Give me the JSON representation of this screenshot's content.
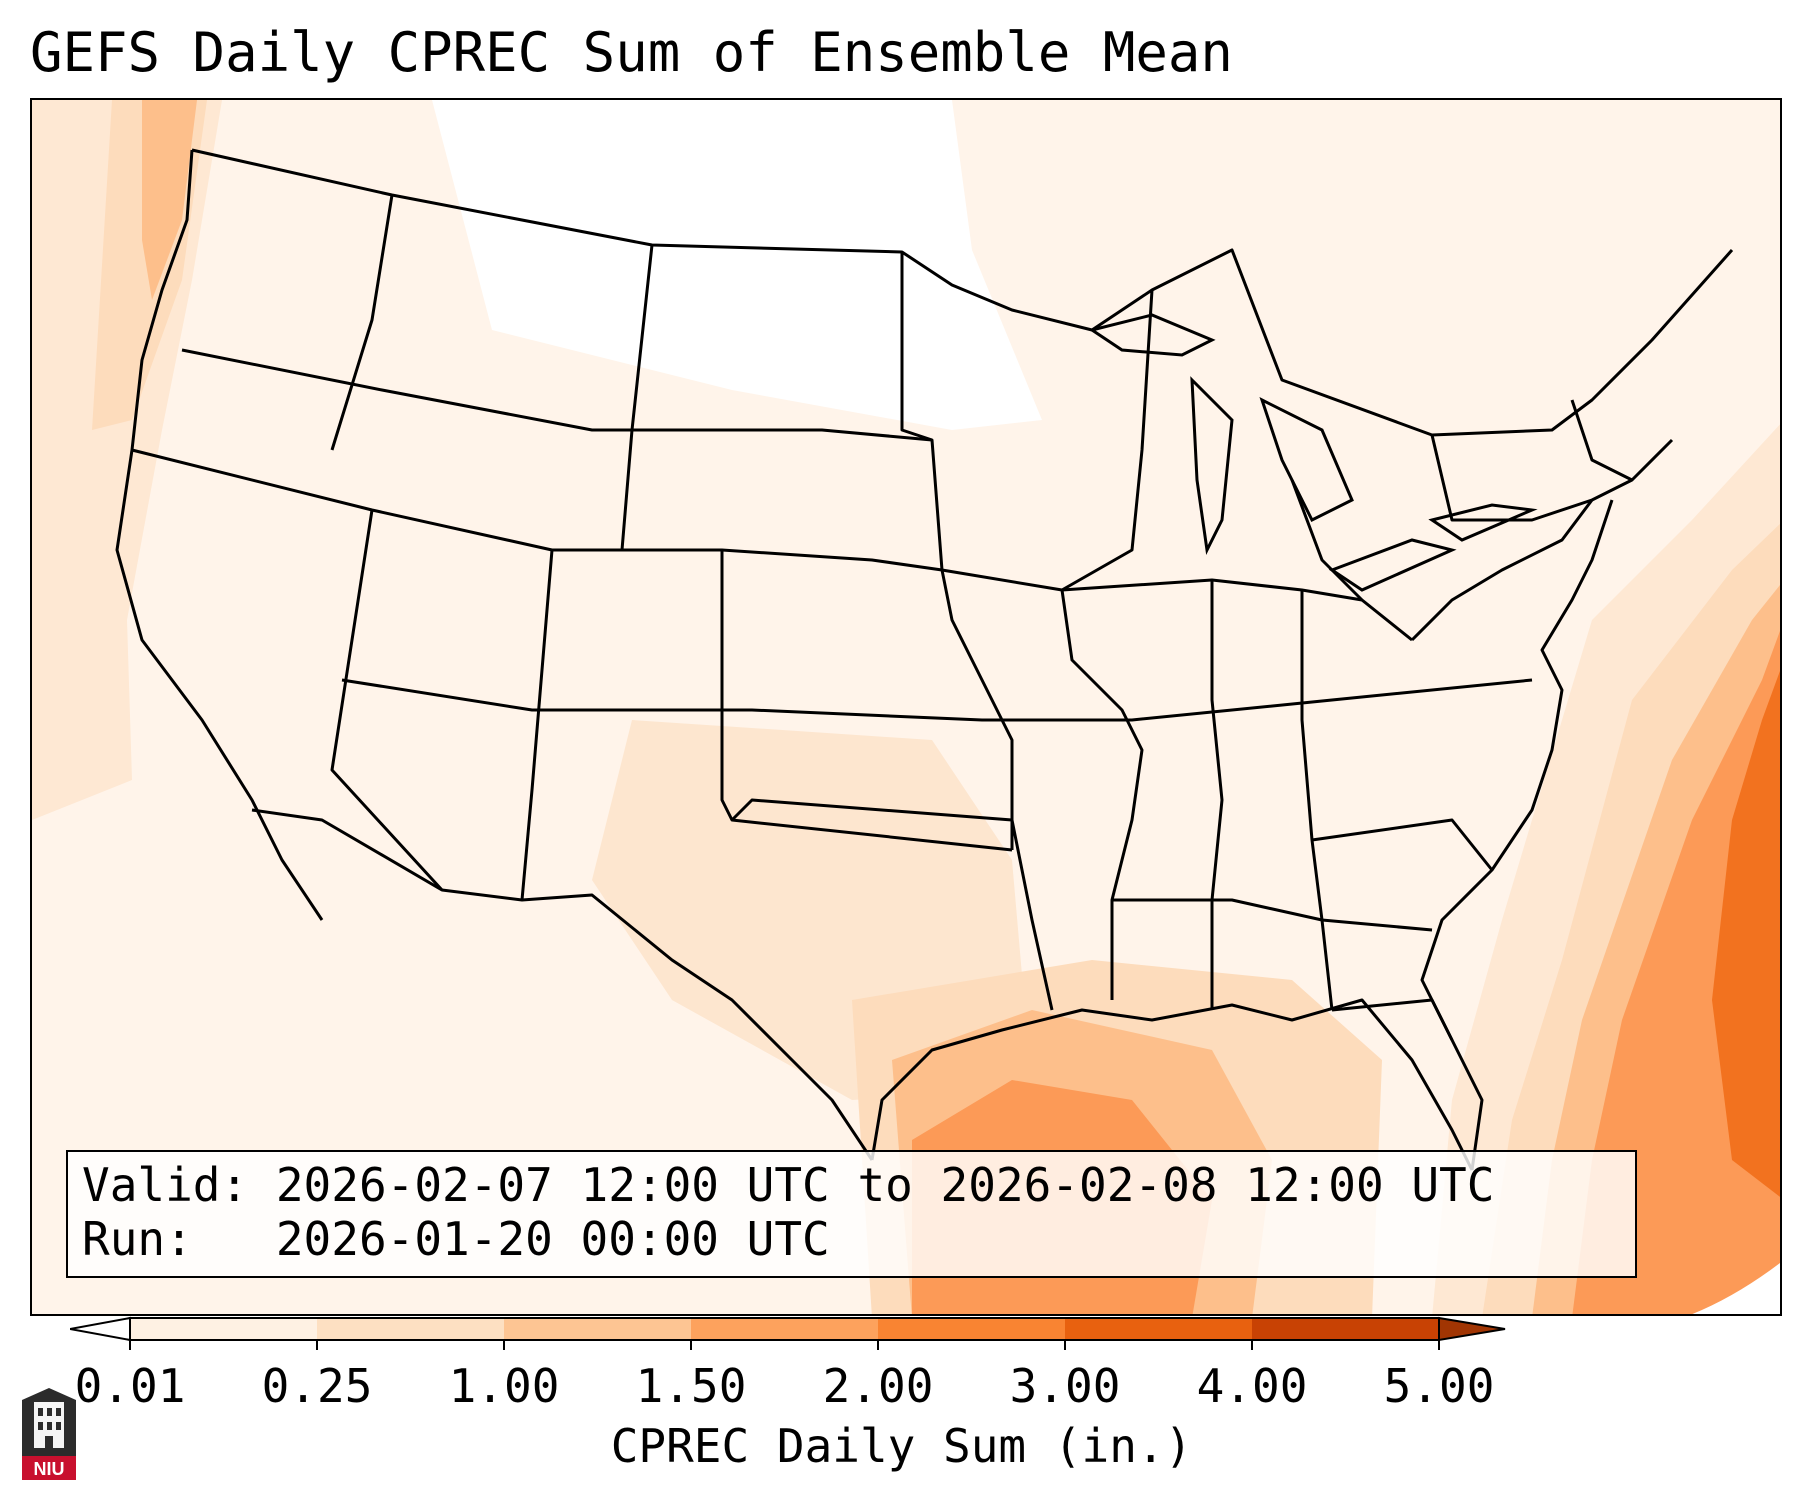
{
  "title": "GEFS Daily CPREC Sum of Ensemble Mean",
  "info": {
    "valid": "Valid: 2026-02-07 12:00 UTC to 2026-02-08 12:00 UTC",
    "run": "Run:   2026-01-20 00:00 UTC"
  },
  "colorbar": {
    "label": "CPREC Daily Sum (in.)",
    "ticks": [
      "0.01",
      "0.25",
      "1.00",
      "1.50",
      "2.00",
      "3.00",
      "4.00",
      "5.00"
    ],
    "colors": [
      "#fef1e3",
      "#fde0c2",
      "#fdc593",
      "#fda25d",
      "#f98432",
      "#e8610f",
      "#c84204"
    ],
    "under_color": "#ffffff",
    "over_color": "#a13503",
    "extend": "both"
  },
  "logo": {
    "text": "NIU"
  },
  "map": {
    "region": "Continental United States",
    "colors": {
      "land_light": "#fff4ea",
      "pale": "#fee8d3",
      "light": "#fddcbc",
      "medium": "#fdbf8b",
      "orange": "#fc9a57",
      "dark": "#f2721f",
      "darkest": "#e05d10",
      "border": "#000000"
    }
  }
}
